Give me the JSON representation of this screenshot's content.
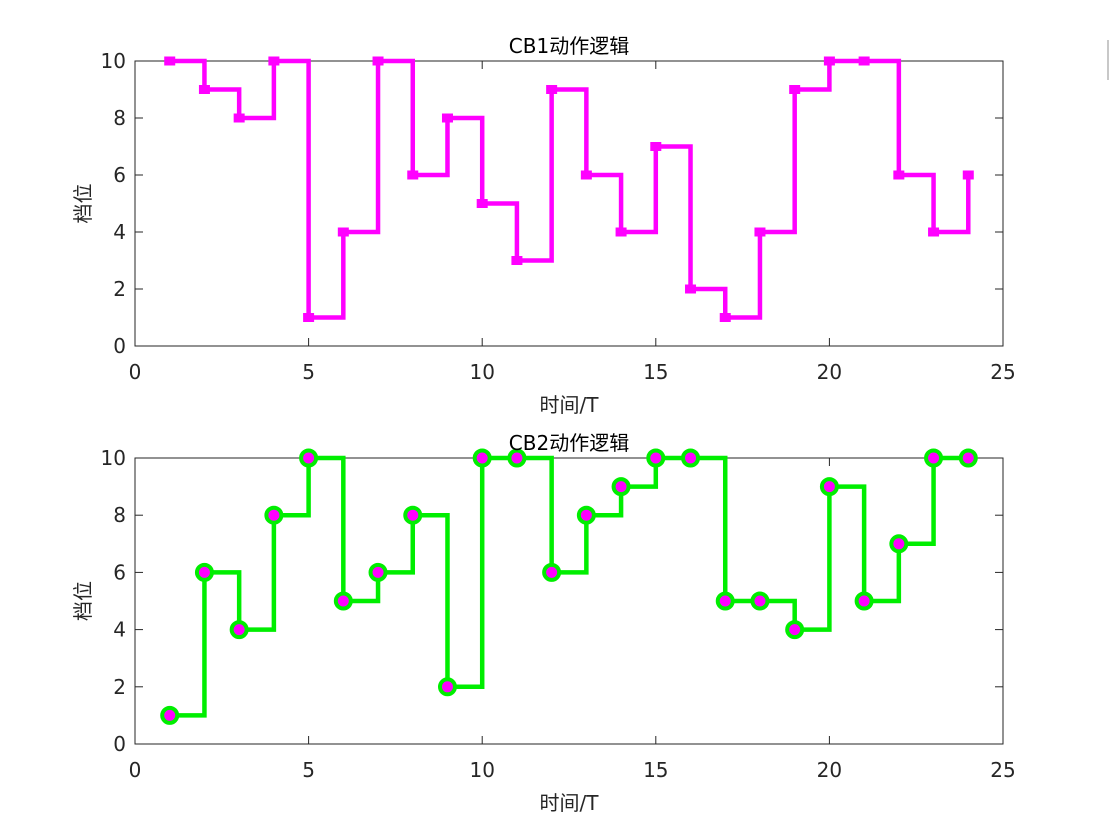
{
  "chart_data": [
    {
      "type": "line",
      "step": true,
      "title": "CB1动作逻辑",
      "xlabel": "时间/T",
      "ylabel": "档位",
      "xlim": [
        0,
        25
      ],
      "ylim": [
        0,
        10
      ],
      "xticks": [
        0,
        5,
        10,
        15,
        20,
        25
      ],
      "yticks": [
        0,
        2,
        4,
        6,
        8,
        10
      ],
      "grid": false,
      "series": [
        {
          "color": "#ff00ff",
          "marker": "square",
          "marker_color": "#ff00ff",
          "x": [
            1,
            2,
            3,
            4,
            5,
            6,
            7,
            8,
            9,
            10,
            11,
            12,
            13,
            14,
            15,
            16,
            17,
            18,
            19,
            20,
            21,
            22,
            23,
            24
          ],
          "y": [
            10,
            9,
            8,
            10,
            1,
            4,
            10,
            6,
            8,
            5,
            3,
            9,
            6,
            4,
            7,
            2,
            1,
            4,
            9,
            10,
            10,
            6,
            4,
            6
          ]
        }
      ]
    },
    {
      "type": "line",
      "step": true,
      "title": "CB2动作逻辑",
      "xlabel": "时间/T",
      "ylabel": "档位",
      "xlim": [
        0,
        25
      ],
      "ylim": [
        0,
        10
      ],
      "xticks": [
        0,
        5,
        10,
        15,
        20,
        25
      ],
      "yticks": [
        0,
        2,
        4,
        6,
        8,
        10
      ],
      "grid": false,
      "series": [
        {
          "color": "#00ee00",
          "marker": "circle",
          "marker_color": "#ff00ff",
          "marker_edge": "#00ee00",
          "x": [
            1,
            2,
            3,
            4,
            5,
            6,
            7,
            8,
            9,
            10,
            11,
            12,
            13,
            14,
            15,
            16,
            17,
            18,
            19,
            20,
            21,
            22,
            23,
            24
          ],
          "y": [
            1,
            6,
            4,
            8,
            10,
            5,
            6,
            8,
            2,
            10,
            10,
            6,
            8,
            9,
            10,
            10,
            5,
            5,
            4,
            9,
            5,
            7,
            10,
            10
          ]
        }
      ]
    }
  ]
}
